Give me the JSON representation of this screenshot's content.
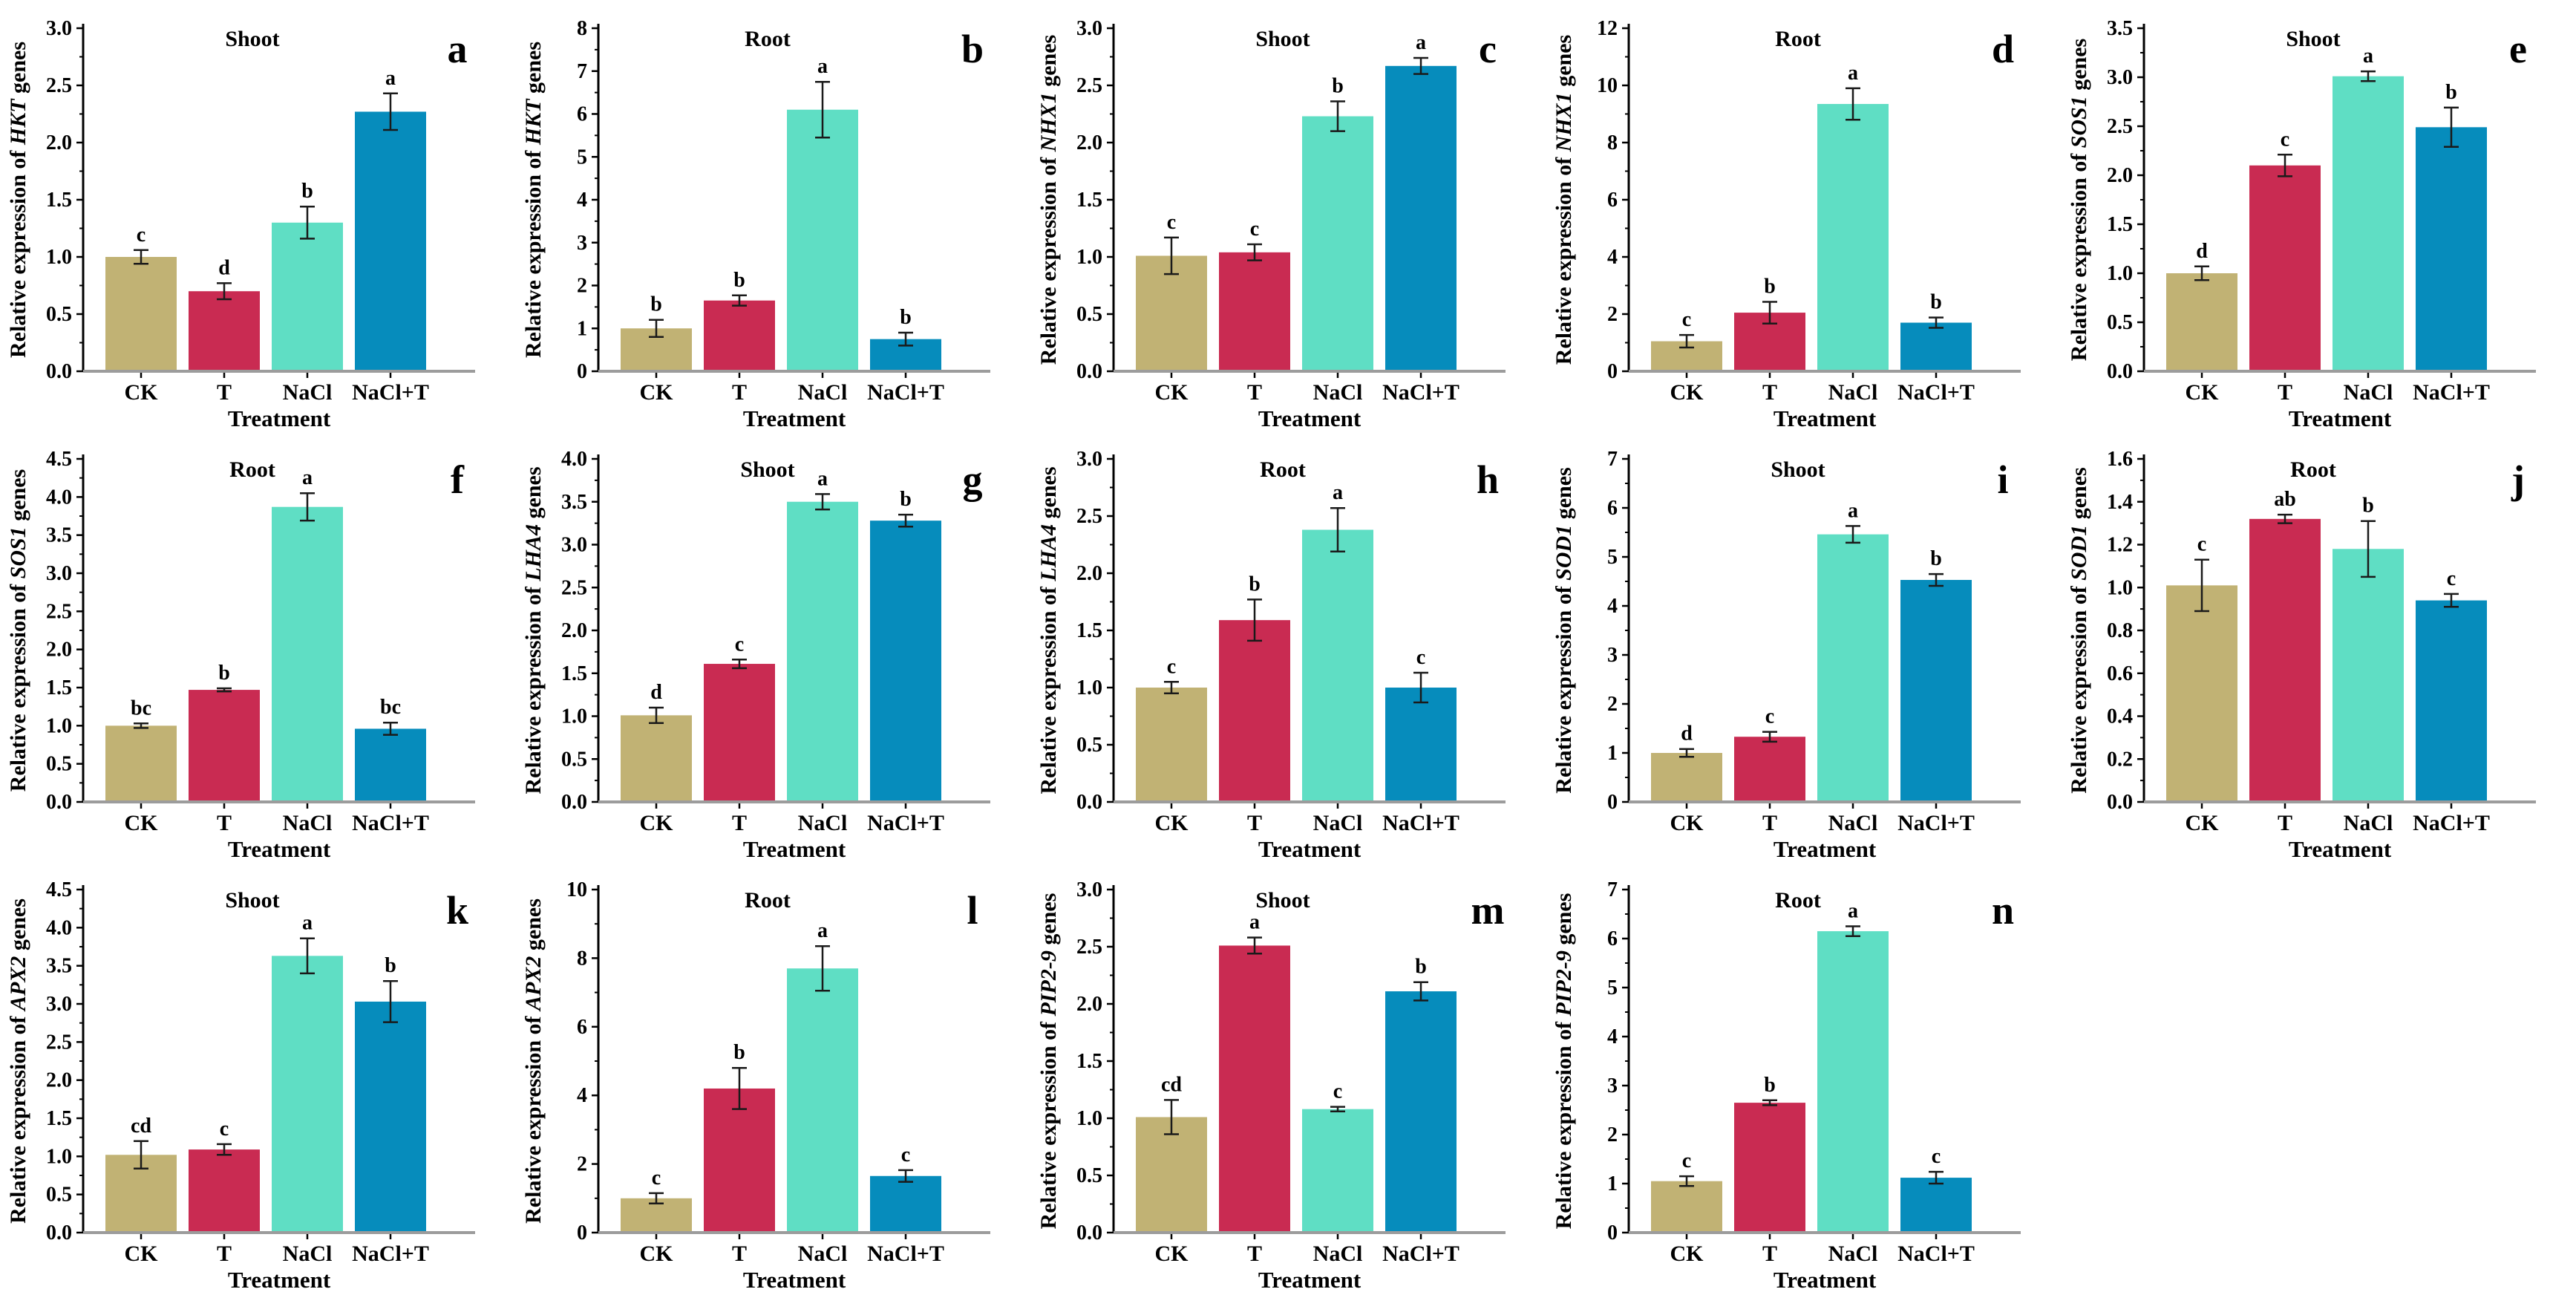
{
  "figure": {
    "x_axis_label": "Treatment",
    "categories": [
      "CK",
      "T",
      "NaCl",
      "NaCl+T"
    ],
    "treatment_colors": {
      "CK": "#C1B274",
      "T": "#C92B52",
      "NaCl": "#5FDEC4",
      "NaCl+T": "#068CBC"
    },
    "ylabel_prefix": "Relative expression of",
    "ylabel_suffix": "genes",
    "axis_color": "#000000",
    "baseline_color": "#9C9C9C",
    "error_bar_color": "#1A1A1A",
    "text_color": "#000000",
    "background": "#FFFFFF"
  },
  "chart_data": [
    {
      "type": "bar",
      "panel_label": "a",
      "tissue": "Shoot",
      "gene": "HKT",
      "ylim": [
        0,
        3.0
      ],
      "ytick_step": 0.5,
      "ytick_decimals": 1,
      "categories": [
        "CK",
        "T",
        "NaCl",
        "NaCl+T"
      ],
      "values": [
        1.0,
        0.7,
        1.3,
        2.27
      ],
      "errors": [
        0.06,
        0.07,
        0.14,
        0.16
      ],
      "sig_letters": [
        "c",
        "d",
        "b",
        "a"
      ]
    },
    {
      "type": "bar",
      "panel_label": "b",
      "tissue": "Root",
      "gene": "HKT",
      "ylim": [
        0,
        8
      ],
      "ytick_step": 1,
      "ytick_decimals": 0,
      "categories": [
        "CK",
        "T",
        "NaCl",
        "NaCl+T"
      ],
      "values": [
        1.0,
        1.65,
        6.1,
        0.75
      ],
      "errors": [
        0.2,
        0.12,
        0.65,
        0.15
      ],
      "sig_letters": [
        "b",
        "b",
        "a",
        "b"
      ]
    },
    {
      "type": "bar",
      "panel_label": "c",
      "tissue": "Shoot",
      "gene": "NHX1",
      "ylim": [
        0,
        3.0
      ],
      "ytick_step": 0.5,
      "ytick_decimals": 1,
      "categories": [
        "CK",
        "T",
        "NaCl",
        "NaCl+T"
      ],
      "values": [
        1.01,
        1.04,
        2.23,
        2.67
      ],
      "errors": [
        0.16,
        0.07,
        0.13,
        0.07
      ],
      "sig_letters": [
        "c",
        "c",
        "b",
        "a"
      ]
    },
    {
      "type": "bar",
      "panel_label": "d",
      "tissue": "Root",
      "gene": "NHX1",
      "ylim": [
        0,
        12
      ],
      "ytick_step": 2,
      "ytick_decimals": 0,
      "categories": [
        "CK",
        "T",
        "NaCl",
        "NaCl+T"
      ],
      "values": [
        1.05,
        2.05,
        9.35,
        1.7
      ],
      "errors": [
        0.22,
        0.38,
        0.55,
        0.18
      ],
      "sig_letters": [
        "c",
        "b",
        "a",
        "b"
      ]
    },
    {
      "type": "bar",
      "panel_label": "e",
      "tissue": "Shoot",
      "gene": "SOS1",
      "ylim": [
        0,
        3.5
      ],
      "ytick_step": 0.5,
      "ytick_decimals": 1,
      "categories": [
        "CK",
        "T",
        "NaCl",
        "NaCl+T"
      ],
      "values": [
        1.0,
        2.1,
        3.01,
        2.49
      ],
      "errors": [
        0.07,
        0.11,
        0.05,
        0.2
      ],
      "sig_letters": [
        "d",
        "c",
        "a",
        "b"
      ]
    },
    {
      "type": "bar",
      "panel_label": "f",
      "tissue": "Root",
      "gene": "SOS1",
      "ylim": [
        0,
        4.5
      ],
      "ytick_step": 0.5,
      "ytick_decimals": 1,
      "categories": [
        "CK",
        "T",
        "NaCl",
        "NaCl+T"
      ],
      "values": [
        1.0,
        1.47,
        3.87,
        0.96
      ],
      "errors": [
        0.03,
        0.02,
        0.18,
        0.08
      ],
      "sig_letters": [
        "bc",
        "b",
        "a",
        "bc"
      ]
    },
    {
      "type": "bar",
      "panel_label": "g",
      "tissue": "Shoot",
      "gene": "LHA4",
      "ylim": [
        0,
        4.0
      ],
      "ytick_step": 0.5,
      "ytick_decimals": 1,
      "categories": [
        "CK",
        "T",
        "NaCl",
        "NaCl+T"
      ],
      "values": [
        1.01,
        1.61,
        3.5,
        3.28
      ],
      "errors": [
        0.09,
        0.05,
        0.09,
        0.07
      ],
      "sig_letters": [
        "d",
        "c",
        "a",
        "b"
      ]
    },
    {
      "type": "bar",
      "panel_label": "h",
      "tissue": "Root",
      "gene": "LHA4",
      "ylim": [
        0,
        3.0
      ],
      "ytick_step": 0.5,
      "ytick_decimals": 1,
      "categories": [
        "CK",
        "T",
        "NaCl",
        "NaCl+T"
      ],
      "values": [
        1.0,
        1.59,
        2.38,
        1.0
      ],
      "errors": [
        0.05,
        0.18,
        0.19,
        0.13
      ],
      "sig_letters": [
        "c",
        "b",
        "a",
        "c"
      ]
    },
    {
      "type": "bar",
      "panel_label": "i",
      "tissue": "Shoot",
      "gene": "SOD1",
      "ylim": [
        0,
        7
      ],
      "ytick_step": 1,
      "ytick_decimals": 0,
      "categories": [
        "CK",
        "T",
        "NaCl",
        "NaCl+T"
      ],
      "values": [
        1.0,
        1.33,
        5.46,
        4.53
      ],
      "errors": [
        0.08,
        0.1,
        0.17,
        0.12
      ],
      "sig_letters": [
        "d",
        "c",
        "a",
        "b"
      ]
    },
    {
      "type": "bar",
      "panel_label": "j",
      "tissue": "Root",
      "gene": "SOD1",
      "ylim": [
        0,
        1.6
      ],
      "ytick_step": 0.2,
      "ytick_decimals": 1,
      "categories": [
        "CK",
        "T",
        "NaCl",
        "NaCl+T"
      ],
      "values": [
        1.01,
        1.32,
        1.18,
        0.94
      ],
      "errors": [
        0.12,
        0.02,
        0.13,
        0.03
      ],
      "sig_letters": [
        "c",
        "ab",
        "b",
        "c"
      ]
    },
    {
      "type": "bar",
      "panel_label": "k",
      "tissue": "Shoot",
      "gene": "APX2",
      "ylim": [
        0,
        4.5
      ],
      "ytick_step": 0.5,
      "ytick_decimals": 1,
      "categories": [
        "CK",
        "T",
        "NaCl",
        "NaCl+T"
      ],
      "values": [
        1.02,
        1.09,
        3.63,
        3.03
      ],
      "errors": [
        0.18,
        0.07,
        0.23,
        0.27
      ],
      "sig_letters": [
        "cd",
        "c",
        "a",
        "b"
      ]
    },
    {
      "type": "bar",
      "panel_label": "l",
      "tissue": "Root",
      "gene": "APX2",
      "ylim": [
        0,
        10
      ],
      "ytick_step": 2,
      "ytick_decimals": 0,
      "categories": [
        "CK",
        "T",
        "NaCl",
        "NaCl+T"
      ],
      "values": [
        1.0,
        4.2,
        7.7,
        1.65
      ],
      "errors": [
        0.15,
        0.6,
        0.65,
        0.17
      ],
      "sig_letters": [
        "c",
        "b",
        "a",
        "c"
      ]
    },
    {
      "type": "bar",
      "panel_label": "m",
      "tissue": "Shoot",
      "gene": "PIP2-9",
      "ylim": [
        0,
        3.0
      ],
      "ytick_step": 0.5,
      "ytick_decimals": 1,
      "categories": [
        "CK",
        "T",
        "NaCl",
        "NaCl+T"
      ],
      "values": [
        1.01,
        2.51,
        1.08,
        2.11
      ],
      "errors": [
        0.15,
        0.07,
        0.02,
        0.08
      ],
      "sig_letters": [
        "cd",
        "a",
        "c",
        "b"
      ]
    },
    {
      "type": "bar",
      "panel_label": "n",
      "tissue": "Root",
      "gene": "PIP2-9",
      "ylim": [
        0,
        7
      ],
      "ytick_step": 1,
      "ytick_decimals": 0,
      "categories": [
        "CK",
        "T",
        "NaCl",
        "NaCl+T"
      ],
      "values": [
        1.05,
        2.65,
        6.15,
        1.12
      ],
      "errors": [
        0.1,
        0.05,
        0.1,
        0.12
      ],
      "sig_letters": [
        "c",
        "b",
        "a",
        "c"
      ]
    }
  ]
}
